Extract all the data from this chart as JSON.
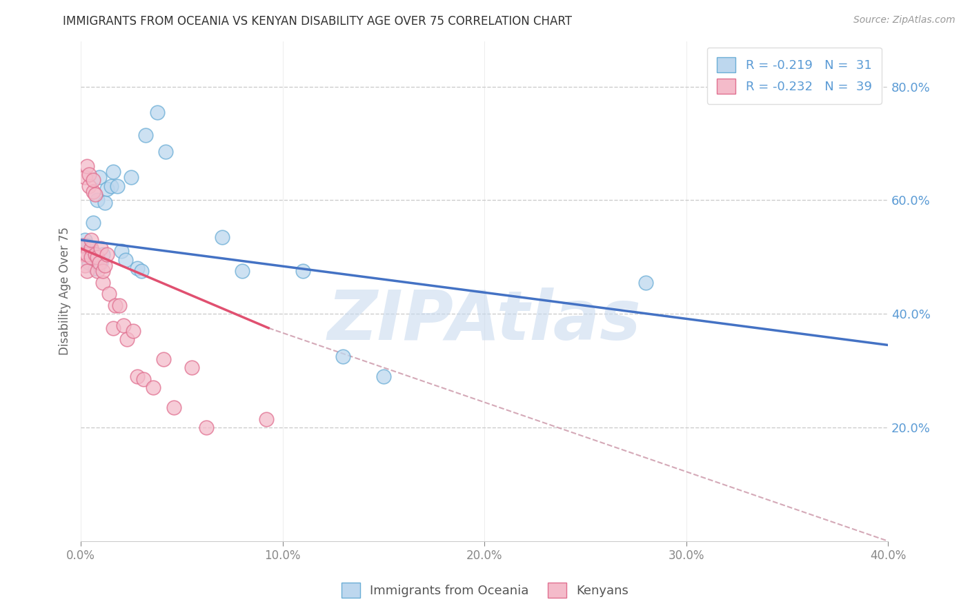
{
  "title": "IMMIGRANTS FROM OCEANIA VS KENYAN DISABILITY AGE OVER 75 CORRELATION CHART",
  "source": "Source: ZipAtlas.com",
  "ylabel": "Disability Age Over 75",
  "xlabel_label_blue": "Immigrants from Oceania",
  "xlabel_label_pink": "Kenyans",
  "watermark": "ZIPAtlas",
  "legend_blue_r": "R = -0.219",
  "legend_blue_n": "N =  31",
  "legend_pink_r": "R = -0.232",
  "legend_pink_n": "N =  39",
  "xmin": 0.0,
  "xmax": 0.4,
  "ymin": 0.0,
  "ymax": 0.88,
  "yticks_right": [
    0.2,
    0.4,
    0.6,
    0.8
  ],
  "xticks": [
    0.0,
    0.1,
    0.2,
    0.3,
    0.4
  ],
  "blue_fill": "#BDD7EE",
  "blue_edge": "#6BAED6",
  "pink_fill": "#F4BBCA",
  "pink_edge": "#E07090",
  "blue_line_color": "#4472C4",
  "pink_line_color": "#E05070",
  "dashed_line_color": "#D0A0B0",
  "blue_dots_x": [
    0.002,
    0.003,
    0.004,
    0.004,
    0.005,
    0.006,
    0.006,
    0.007,
    0.008,
    0.009,
    0.01,
    0.011,
    0.012,
    0.013,
    0.015,
    0.016,
    0.018,
    0.02,
    0.022,
    0.025,
    0.028,
    0.03,
    0.032,
    0.038,
    0.042,
    0.07,
    0.08,
    0.11,
    0.13,
    0.15,
    0.28
  ],
  "blue_dots_y": [
    0.53,
    0.52,
    0.51,
    0.49,
    0.515,
    0.5,
    0.56,
    0.48,
    0.6,
    0.64,
    0.49,
    0.505,
    0.595,
    0.62,
    0.625,
    0.65,
    0.625,
    0.51,
    0.495,
    0.64,
    0.48,
    0.475,
    0.715,
    0.755,
    0.685,
    0.535,
    0.475,
    0.475,
    0.325,
    0.29,
    0.455
  ],
  "pink_dots_x": [
    0.001,
    0.001,
    0.002,
    0.002,
    0.003,
    0.003,
    0.003,
    0.004,
    0.004,
    0.005,
    0.005,
    0.005,
    0.006,
    0.006,
    0.007,
    0.007,
    0.008,
    0.008,
    0.009,
    0.01,
    0.011,
    0.011,
    0.012,
    0.013,
    0.014,
    0.016,
    0.017,
    0.019,
    0.021,
    0.023,
    0.026,
    0.028,
    0.031,
    0.036,
    0.041,
    0.046,
    0.055,
    0.062,
    0.092
  ],
  "pink_dots_y": [
    0.505,
    0.52,
    0.485,
    0.64,
    0.66,
    0.505,
    0.475,
    0.625,
    0.645,
    0.515,
    0.53,
    0.5,
    0.615,
    0.635,
    0.61,
    0.505,
    0.475,
    0.5,
    0.49,
    0.515,
    0.455,
    0.475,
    0.485,
    0.505,
    0.435,
    0.375,
    0.415,
    0.415,
    0.38,
    0.355,
    0.37,
    0.29,
    0.285,
    0.27,
    0.32,
    0.235,
    0.305,
    0.2,
    0.215
  ],
  "blue_line_x": [
    0.0,
    0.4
  ],
  "blue_line_y": [
    0.53,
    0.345
  ],
  "pink_line_x": [
    0.0,
    0.093
  ],
  "pink_line_y": [
    0.515,
    0.375
  ],
  "dashed_line_x": [
    0.093,
    0.4
  ],
  "dashed_line_y": [
    0.375,
    0.0
  ],
  "background_color": "#FFFFFF",
  "grid_color": "#CCCCCC"
}
